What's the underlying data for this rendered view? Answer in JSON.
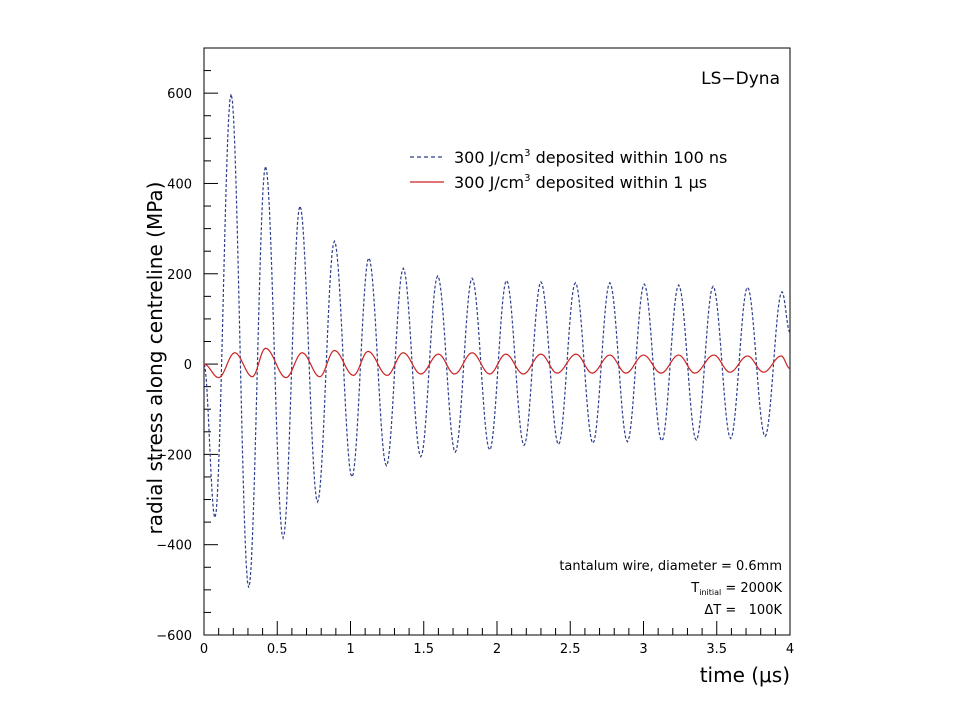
{
  "chart_data": {
    "type": "line",
    "title": "LS−Dyna",
    "xlabel": "time (μs)",
    "ylabel": "radial stress along centreline (MPa)",
    "xlim": [
      0,
      4
    ],
    "ylim": [
      -600,
      700
    ],
    "x_ticks": [
      0,
      0.5,
      1,
      1.5,
      2,
      2.5,
      3,
      3.5,
      4
    ],
    "x_tick_labels": [
      "0",
      "0.5",
      "1",
      "1.5",
      "2",
      "2.5",
      "3",
      "3.5",
      "4"
    ],
    "y_ticks": [
      -600,
      -400,
      -200,
      0,
      200,
      400,
      600
    ],
    "y_tick_labels": [
      "−600",
      "−400",
      "−200",
      "0",
      "200",
      "400",
      "600"
    ],
    "grid": false,
    "legend_position": "top-right",
    "series": [
      {
        "name_parts": [
          "300 J/cm",
          "3",
          " deposited within 100 ns"
        ],
        "color": "#2c3f8c",
        "style": "dashed",
        "period": 0.2345,
        "first_peak": 0.185,
        "peaks": [
          [
            0.185,
            598
          ],
          [
            0.42,
            438
          ],
          [
            0.655,
            350
          ],
          [
            0.89,
            272
          ],
          [
            1.125,
            235
          ],
          [
            1.36,
            212
          ],
          [
            1.595,
            195
          ],
          [
            1.83,
            190
          ],
          [
            2.065,
            185
          ],
          [
            2.3,
            182
          ],
          [
            2.535,
            180
          ],
          [
            2.77,
            180
          ],
          [
            3.005,
            177
          ],
          [
            3.24,
            175
          ],
          [
            3.475,
            172
          ],
          [
            3.71,
            170
          ],
          [
            3.945,
            160
          ]
        ],
        "troughs": [
          [
            0.075,
            -340
          ],
          [
            0.305,
            -495
          ],
          [
            0.54,
            -385
          ],
          [
            0.775,
            -305
          ],
          [
            1.01,
            -250
          ],
          [
            1.245,
            -225
          ],
          [
            1.48,
            -205
          ],
          [
            1.715,
            -195
          ],
          [
            1.95,
            -190
          ],
          [
            2.185,
            -180
          ],
          [
            2.42,
            -178
          ],
          [
            2.655,
            -175
          ],
          [
            2.89,
            -172
          ],
          [
            3.125,
            -170
          ],
          [
            3.36,
            -168
          ],
          [
            3.595,
            -165
          ],
          [
            3.83,
            -160
          ]
        ],
        "end_value": 70
      },
      {
        "name_parts": [
          "300 J/cm",
          "3",
          " deposited within 1 ",
          "μs"
        ],
        "color": "#cc2222",
        "style": "solid",
        "period": 0.2345,
        "peaks": [
          [
            0.0,
            0
          ],
          [
            0.21,
            25
          ],
          [
            0.42,
            35
          ],
          [
            0.67,
            25
          ],
          [
            0.89,
            30
          ],
          [
            1.12,
            28
          ],
          [
            1.36,
            25
          ],
          [
            1.6,
            22
          ],
          [
            1.83,
            25
          ],
          [
            2.06,
            22
          ],
          [
            2.3,
            22
          ],
          [
            2.54,
            22
          ],
          [
            2.77,
            20
          ],
          [
            3.0,
            20
          ],
          [
            3.24,
            20
          ],
          [
            3.48,
            20
          ],
          [
            3.71,
            18
          ],
          [
            3.94,
            18
          ]
        ],
        "troughs": [
          [
            0.1,
            -30
          ],
          [
            0.33,
            -28
          ],
          [
            0.56,
            -30
          ],
          [
            0.79,
            -28
          ],
          [
            1.02,
            -25
          ],
          [
            1.25,
            -25
          ],
          [
            1.48,
            -22
          ],
          [
            1.71,
            -22
          ],
          [
            1.95,
            -22
          ],
          [
            2.18,
            -22
          ],
          [
            2.41,
            -20
          ],
          [
            2.65,
            -20
          ],
          [
            2.88,
            -20
          ],
          [
            3.12,
            -20
          ],
          [
            3.35,
            -20
          ],
          [
            3.59,
            -18
          ],
          [
            3.82,
            -18
          ]
        ],
        "end_value": -10
      }
    ],
    "annotation": "LS−Dyna",
    "info": {
      "line1": "tantalum wire, diameter = 0.6mm",
      "line2_symbol": "T",
      "line2_sub": "initial",
      "line2_rest": " = 2000K",
      "line3": "ΔT =   100K"
    }
  }
}
